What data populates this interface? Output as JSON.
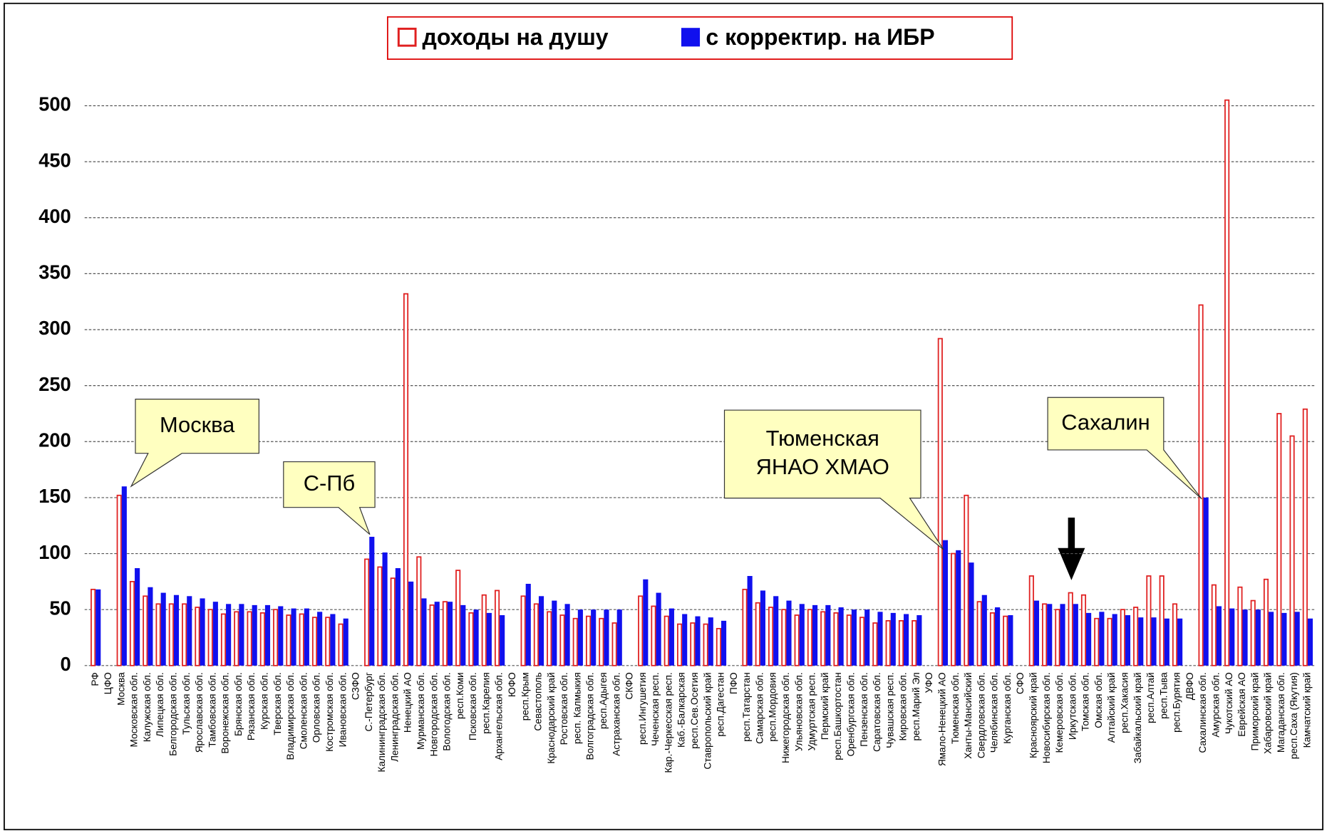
{
  "chart_data": {
    "type": "bar",
    "categories": [
      "РФ",
      "ЦФО",
      "Москва",
      "Московская обл.",
      "Калужская обл.",
      "Липецкая обл.",
      "Белгородская обл.",
      "Тульская обл.",
      "Ярославская обл.",
      "Тамбовская обл.",
      "Воронежская обл.",
      "Брянская обл.",
      "Рязанская обл.",
      "Курская обл.",
      "Тверская обл.",
      "Владимирская обл.",
      "Смоленская обл.",
      "Орловская обл.",
      "Костромская обл.",
      "Ивановская обл.",
      "СЗФО",
      "С.-Петербург",
      "Калининградская обл.",
      "Ленинградская обл.",
      "Ненецкий АО",
      "Мурманская обл.",
      "Новгородская обл.",
      "Вологодская обл.",
      "респ.Коми",
      "Псковская обл.",
      "респ.Карелия",
      "Архангельская обл.",
      "ЮФО",
      "респ.Крым",
      "Севастополь",
      "Краснодарский край",
      "Ростовская обл.",
      "респ. Калмыкия",
      "Волгоградская обл.",
      "респ.Адыгея",
      "Астраханская обл.",
      "СКФО",
      "респ.Ингушетия",
      "Чеченская респ.",
      "Кар.-Черкесская респ.",
      "Каб.-Балкарская",
      "респ.Сев.Осетия",
      "Ставропольский край",
      "респ.Дагестан",
      "ПФО",
      "респ.Татарстан",
      "Самарская обл.",
      "респ.Мордовия",
      "Нижегородская обл.",
      "Ульяновская обл.",
      "Удмуртская респ.",
      "Пермский край",
      "респ.Башкортостан",
      "Оренбургская обл.",
      "Пензенская обл.",
      "Саратовская обл.",
      "Чувашская респ.",
      "Кировская обл.",
      "респ.Марий Эл",
      "УФО",
      "Ямало-Ненецкий АО",
      "Тюменская обл.",
      "Ханты-Мансийский",
      "Свердловская обл.",
      "Челябинская обл.",
      "Курганская обл.",
      "СФО",
      "Красноярский край",
      "Новосибирская обл.",
      "Кемеровская обл.",
      "Иркутская обл.",
      "Томская обл.",
      "Омская обл.",
      "Алтайский край",
      "респ.Хакасия",
      "Забайкальский край",
      "респ.Алтай",
      "респ.Тыва",
      "респ.Бурятия",
      "ДВФО",
      "Сахалинская обл.",
      "Амурская обл.",
      "Чукотский АО",
      "Еврейская АО",
      "Приморский край",
      "Хабаровский край",
      "Магаданская обл.",
      "респ.Саха (Якутия)",
      "Камчатский край"
    ],
    "series": [
      {
        "name": "доходы на душу",
        "color": "#e02020",
        "fill": "none",
        "values": [
          68,
          null,
          152,
          75,
          62,
          55,
          55,
          55,
          52,
          50,
          46,
          48,
          48,
          47,
          50,
          45,
          46,
          43,
          43,
          37,
          null,
          95,
          88,
          78,
          332,
          97,
          54,
          57,
          85,
          47,
          63,
          67,
          null,
          62,
          55,
          48,
          45,
          42,
          44,
          42,
          38,
          null,
          62,
          53,
          44,
          37,
          38,
          37,
          33,
          null,
          68,
          56,
          52,
          50,
          45,
          50,
          48,
          47,
          45,
          43,
          38,
          40,
          40,
          40,
          null,
          292,
          100,
          152,
          57,
          47,
          44,
          null,
          80,
          55,
          50,
          65,
          63,
          42,
          42,
          50,
          52,
          80,
          80,
          55,
          null,
          322,
          72,
          505,
          70,
          58,
          77,
          225,
          205,
          229
        ]
      },
      {
        "name": "с корректир. на ИБР",
        "color": "#1010ee",
        "fill": "solid",
        "values": [
          68,
          null,
          160,
          87,
          70,
          65,
          63,
          62,
          60,
          57,
          55,
          55,
          54,
          54,
          53,
          51,
          51,
          48,
          46,
          42,
          null,
          115,
          101,
          87,
          75,
          60,
          57,
          57,
          54,
          50,
          47,
          45,
          null,
          73,
          62,
          58,
          55,
          50,
          50,
          50,
          50,
          null,
          77,
          65,
          51,
          46,
          44,
          43,
          40,
          null,
          80,
          67,
          62,
          58,
          55,
          54,
          54,
          52,
          50,
          50,
          48,
          47,
          46,
          45,
          null,
          112,
          103,
          92,
          63,
          52,
          45,
          null,
          58,
          55,
          55,
          55,
          47,
          48,
          46,
          45,
          43,
          43,
          42,
          42,
          null,
          150,
          53,
          51,
          50,
          50,
          48,
          47,
          48,
          42
        ]
      }
    ],
    "ylim": [
      0,
      510
    ],
    "yticks": [
      0,
      50,
      100,
      150,
      200,
      250,
      300,
      350,
      400,
      450,
      500
    ],
    "grid": true,
    "legend": "top",
    "annotations": [
      [
        "Москва"
      ],
      [
        "С-Пб"
      ],
      [
        "Тюменская",
        "ЯНАО ХМАО"
      ],
      [
        "Сахалин"
      ]
    ]
  }
}
